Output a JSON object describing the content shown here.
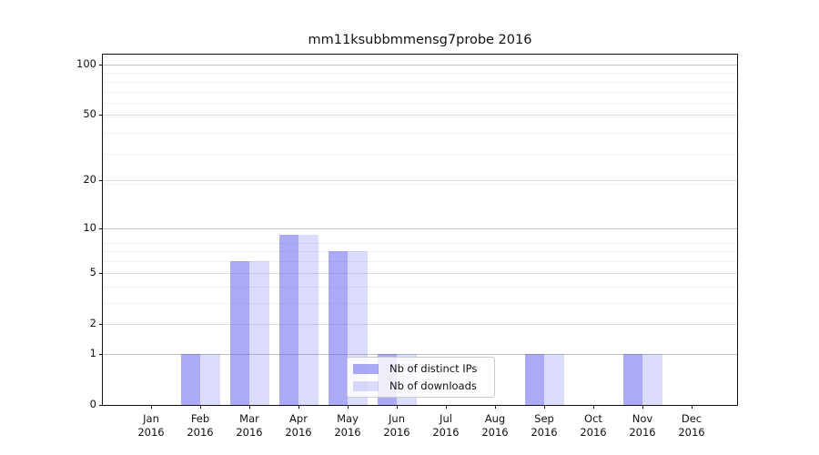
{
  "chart_data": {
    "type": "bar",
    "title": "mm11ksubbmmensg7probe 2016",
    "x_month_labels": [
      "Jan",
      "Feb",
      "Mar",
      "Apr",
      "May",
      "Jun",
      "Jul",
      "Aug",
      "Sep",
      "Oct",
      "Nov",
      "Dec"
    ],
    "x_year": "2016",
    "series": [
      {
        "name": "Nb of distinct IPs",
        "color": "rgba(85,85,238,0.50)",
        "swatch_hex": "#aaaaf6",
        "values": [
          0,
          1,
          6,
          9,
          7,
          1,
          0,
          0,
          1,
          0,
          1,
          0
        ]
      },
      {
        "name": "Nb of downloads",
        "color": "rgba(85,85,238,0.21)",
        "swatch_hex": "#dcdcf7",
        "values": [
          0,
          1,
          6,
          9,
          7,
          1,
          0,
          0,
          1,
          0,
          1,
          0
        ]
      }
    ],
    "yscale": "log1p",
    "yticks": [
      0,
      1,
      2,
      5,
      10,
      20,
      50,
      100
    ],
    "ylim": [
      0,
      114.6
    ],
    "grid": true,
    "legend": {
      "position": "lower-center",
      "items": [
        "Nb of distinct IPs",
        "Nb of downloads"
      ]
    }
  },
  "colors": {
    "grid_strong": "#c2c2c2",
    "grid_major": "#dedede",
    "grid_minor": "#f0f0f0",
    "spine": "#111111"
  }
}
